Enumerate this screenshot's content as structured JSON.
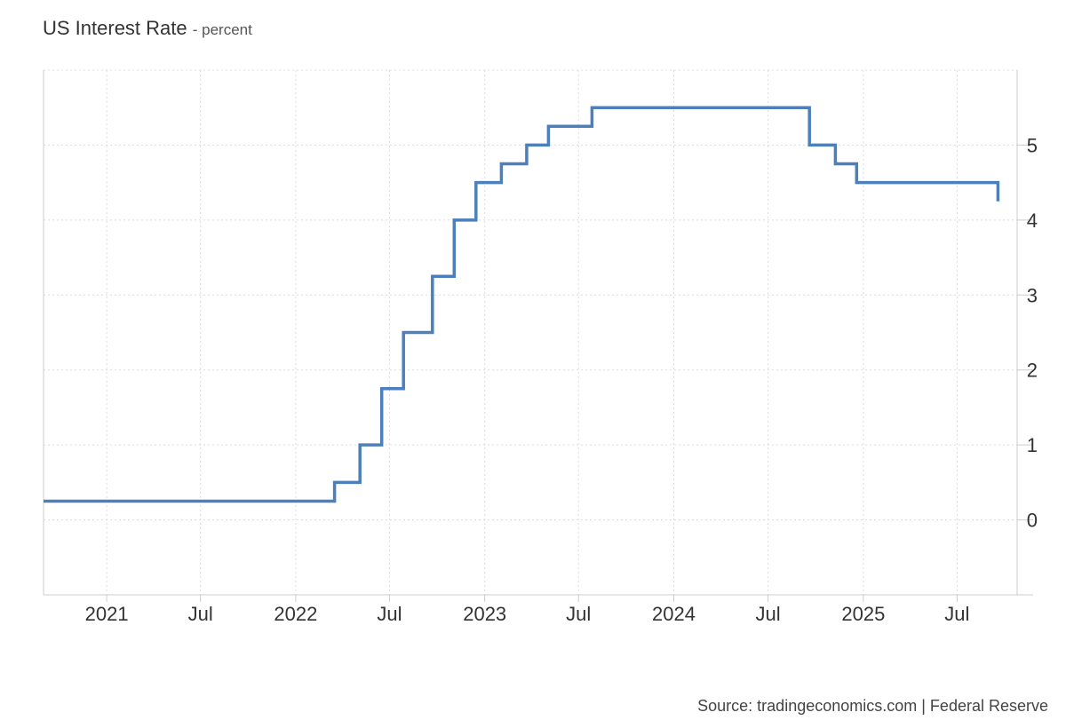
{
  "chart_data": {
    "type": "line",
    "title": "US Interest Rate",
    "subtitle": "- percent",
    "source": "Source: tradingeconomics.com | Federal Reserve",
    "line_color": "#4d7fba",
    "line_style": "step",
    "grid": true,
    "y_axis_position": "right",
    "xlim": [
      "2020-09-01",
      "2025-10-25"
    ],
    "ylim": [
      -1,
      6
    ],
    "x_ticks": [
      {
        "date": "2021-01-01",
        "label": "2021"
      },
      {
        "date": "2021-07-01",
        "label": "Jul"
      },
      {
        "date": "2022-01-01",
        "label": "2022"
      },
      {
        "date": "2022-07-01",
        "label": "Jul"
      },
      {
        "date": "2023-01-01",
        "label": "2023"
      },
      {
        "date": "2023-07-01",
        "label": "Jul"
      },
      {
        "date": "2024-01-01",
        "label": "2024"
      },
      {
        "date": "2024-07-01",
        "label": "Jul"
      },
      {
        "date": "2025-01-01",
        "label": "2025"
      },
      {
        "date": "2025-07-01",
        "label": "Jul"
      }
    ],
    "y_ticks": [
      0,
      1,
      2,
      3,
      4,
      5
    ],
    "series": [
      {
        "points": [
          {
            "x": "2020-09-01",
            "y": 0.25
          },
          {
            "x": "2022-03-17",
            "y": 0.5
          },
          {
            "x": "2022-05-05",
            "y": 1.0
          },
          {
            "x": "2022-06-16",
            "y": 1.75
          },
          {
            "x": "2022-07-28",
            "y": 2.5
          },
          {
            "x": "2022-09-22",
            "y": 3.25
          },
          {
            "x": "2022-11-03",
            "y": 4.0
          },
          {
            "x": "2022-12-15",
            "y": 4.5
          },
          {
            "x": "2023-02-02",
            "y": 4.75
          },
          {
            "x": "2023-03-23",
            "y": 5.0
          },
          {
            "x": "2023-05-04",
            "y": 5.25
          },
          {
            "x": "2023-07-27",
            "y": 5.5
          },
          {
            "x": "2024-09-19",
            "y": 5.0
          },
          {
            "x": "2024-11-08",
            "y": 4.75
          },
          {
            "x": "2024-12-19",
            "y": 4.5
          },
          {
            "x": "2025-09-18",
            "y": 4.25
          }
        ]
      }
    ]
  }
}
